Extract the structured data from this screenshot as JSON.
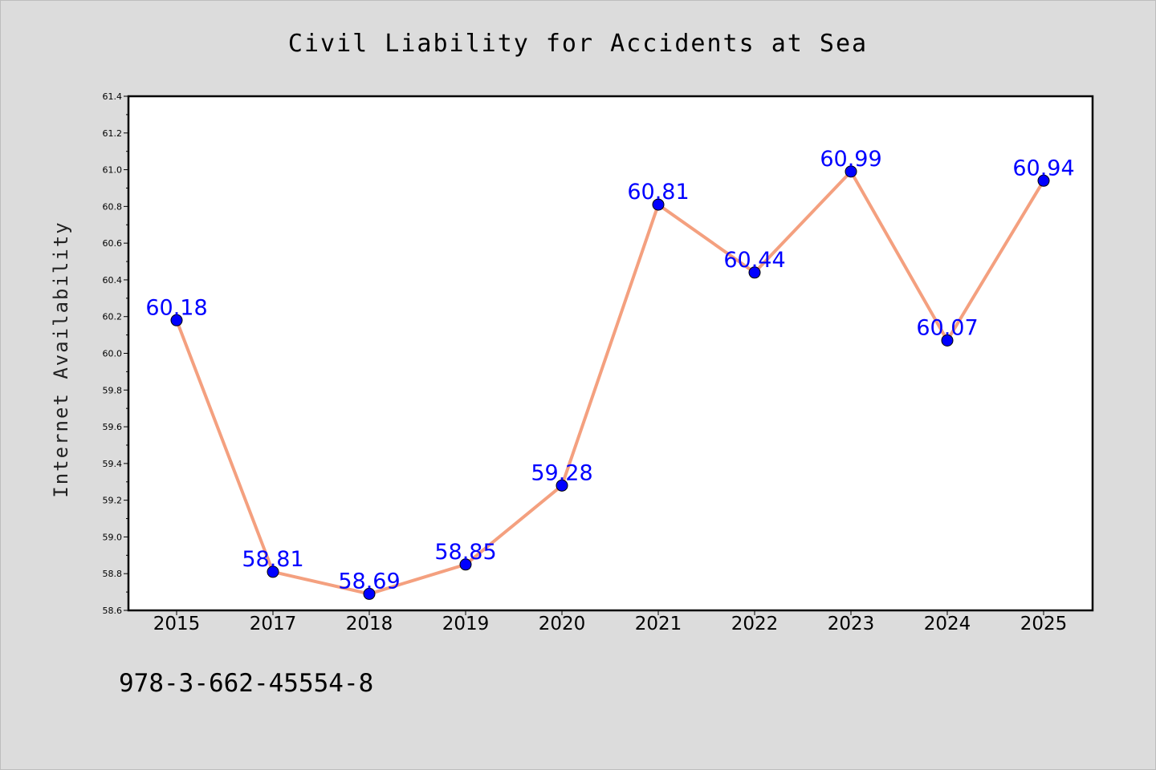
{
  "chart_data": {
    "type": "line",
    "title": "Civil Liability for Accidents at Sea",
    "xlabel": "",
    "ylabel": "Internet Availability",
    "categories": [
      "2015",
      "2017",
      "2018",
      "2019",
      "2020",
      "2021",
      "2022",
      "2023",
      "2024",
      "2025"
    ],
    "series": [
      {
        "values": [
          60.18,
          58.81,
          58.69,
          58.85,
          59.28,
          60.81,
          60.44,
          60.99,
          60.07,
          60.94
        ]
      }
    ],
    "data_labels": [
      "60.18",
      "58.81",
      "58.69",
      "58.85",
      "59.28",
      "60.81",
      "60.44",
      "60.99",
      "60.07",
      "60.94"
    ],
    "ylim": [
      58.6,
      61.4
    ],
    "yticks": [
      "58.6",
      "58.8",
      "59.0",
      "59.2",
      "59.4",
      "59.6",
      "59.8",
      "60.0",
      "60.2",
      "60.4",
      "60.6",
      "60.8",
      "61.0",
      "61.2",
      "61.4"
    ],
    "grid": false,
    "colors": {
      "line": "#f4a07f",
      "marker": "#0000ff",
      "label": "#0000ff",
      "background": "#dcdcdc",
      "plot_background": "#ffffff"
    }
  },
  "footer": {
    "isbn": "978-3-662-45554-8"
  }
}
